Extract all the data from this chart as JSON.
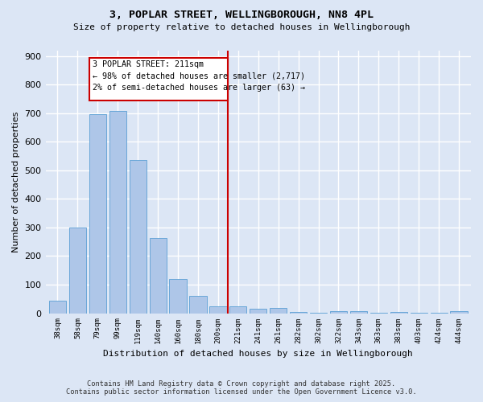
{
  "title_line1": "3, POPLAR STREET, WELLINGBOROUGH, NN8 4PL",
  "title_line2": "Size of property relative to detached houses in Wellingborough",
  "xlabel": "Distribution of detached houses by size in Wellingborough",
  "ylabel": "Number of detached properties",
  "bar_color": "#aec6e8",
  "bar_edge_color": "#5a9fd4",
  "background_color": "#dce6f5",
  "grid_color": "#ffffff",
  "annotation_line_color": "#cc0000",
  "annotation_box_color": "#cc0000",
  "annotation_text_line1": "3 POPLAR STREET: 211sqm",
  "annotation_text_line2": "← 98% of detached houses are smaller (2,717)",
  "annotation_text_line3": "2% of semi-detached houses are larger (63) →",
  "footer_line1": "Contains HM Land Registry data © Crown copyright and database right 2025.",
  "footer_line2": "Contains public sector information licensed under the Open Government Licence v3.0.",
  "categories": [
    "38sqm",
    "58sqm",
    "79sqm",
    "99sqm",
    "119sqm",
    "140sqm",
    "160sqm",
    "180sqm",
    "200sqm",
    "221sqm",
    "241sqm",
    "261sqm",
    "282sqm",
    "302sqm",
    "322sqm",
    "343sqm",
    "363sqm",
    "383sqm",
    "403sqm",
    "424sqm",
    "444sqm"
  ],
  "values": [
    45,
    300,
    695,
    707,
    537,
    263,
    121,
    60,
    25,
    25,
    15,
    18,
    5,
    2,
    7,
    7,
    2,
    3,
    1,
    1,
    6
  ],
  "marker_index": 9,
  "ylim": [
    0,
    920
  ],
  "yticks": [
    0,
    100,
    200,
    300,
    400,
    500,
    600,
    700,
    800,
    900
  ]
}
